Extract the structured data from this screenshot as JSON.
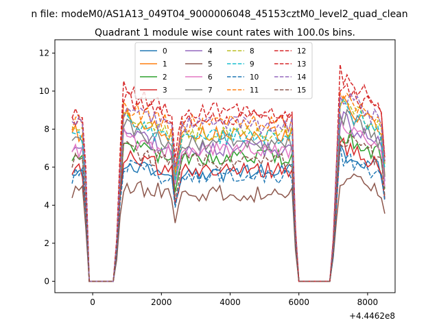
{
  "chart_data": {
    "type": "line",
    "suptitle": "n file: modeM0/AS1A13_049T04_9000006048_45153cztM0_level2_quad_clean",
    "title": "Quadrant 1 module wise count rates with 100.0s bins.",
    "xlabel": "",
    "ylabel": "",
    "offset_label": "+4.4462e8",
    "xlim": [
      -1100,
      8800
    ],
    "ylim": [
      -0.6,
      12.7
    ],
    "x_ticks": [
      0,
      2000,
      4000,
      6000,
      8000
    ],
    "x_tick_labels": [
      "0",
      "2000",
      "4000",
      "6000",
      "8000"
    ],
    "y_ticks": [
      0,
      2,
      4,
      6,
      8,
      10,
      12
    ],
    "y_tick_labels": [
      "0",
      "2",
      "4",
      "6",
      "8",
      "10",
      "12"
    ],
    "grid": false,
    "legend_position": "top-center",
    "legend_columns": 4,
    "colors": [
      "#1f77b4",
      "#ff7f0e",
      "#2ca02c",
      "#d62728",
      "#9467bd",
      "#8c564b",
      "#e377c2",
      "#7f7f7f",
      "#bcbd22",
      "#17becf",
      "#1f77b4",
      "#ff7f0e",
      "#d62728",
      "#d62728",
      "#9467bd",
      "#8c564b"
    ],
    "dashed": [
      false,
      false,
      false,
      false,
      false,
      false,
      false,
      false,
      true,
      true,
      true,
      true,
      true,
      true,
      true,
      true
    ],
    "x_start": -600,
    "x_step": 100,
    "base_levels": [
      5.7,
      7.8,
      6.5,
      5.9,
      7.0,
      4.6,
      6.9,
      7.3,
      7.8,
      7.6,
      5.5,
      8.3,
      8.6,
      9.0,
      8.2,
      6.3
    ],
    "series": [
      {
        "name": "0"
      },
      {
        "name": "1"
      },
      {
        "name": "2"
      },
      {
        "name": "3"
      },
      {
        "name": "4"
      },
      {
        "name": "5"
      },
      {
        "name": "6"
      },
      {
        "name": "7"
      },
      {
        "name": "8"
      },
      {
        "name": "9"
      },
      {
        "name": "10"
      },
      {
        "name": "11"
      },
      {
        "name": "12"
      },
      {
        "name": "13"
      },
      {
        "name": "14"
      },
      {
        "name": "15"
      }
    ]
  }
}
